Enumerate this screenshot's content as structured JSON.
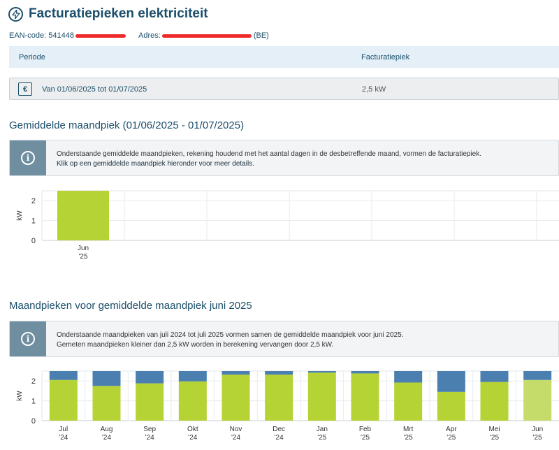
{
  "header": {
    "title": "Facturatiepieken elektriciteit",
    "icon": "bolt-icon"
  },
  "meta": {
    "ean_label": "EAN-code:",
    "ean_value": "541448",
    "address_label": "Adres:",
    "address_suffix": "(BE)"
  },
  "table": {
    "headers": [
      "Periode",
      "Facturatiepiek"
    ],
    "row": {
      "period": "Van 01/06/2025 tot 01/07/2025",
      "peak": "2,5 kW",
      "icon": "invoice-icon"
    }
  },
  "section1": {
    "title": "Gemiddelde maandpiek (01/06/2025 - 01/07/2025)",
    "info_line1": "Onderstaande gemiddelde maandpieken, rekening houdend met het aantal dagen in de desbetreffende maand, vormen de facturatiepiek.",
    "info_line2": "Klik op een gemiddelde maandpiek hieronder voor meer details."
  },
  "section2": {
    "title": "Maandpieken voor gemiddelde maandpiek juni 2025",
    "info_line1": "Onderstaande maandpieken van juli 2024 tot juli 2025 vormen samen de gemiddelde maandpiek voor juni 2025.",
    "info_line2": "Gemeten maandpieken kleiner dan 2,5 kW worden in berekening vervangen door 2,5 kW."
  },
  "chart_data": [
    {
      "type": "bar",
      "ylabel": "kW",
      "ylim": [
        0,
        2.5
      ],
      "yticks": [
        0,
        1,
        2
      ],
      "categories": [
        [
          "Jun",
          "'25"
        ]
      ],
      "values": [
        2.5
      ],
      "colors": {
        "bar": "#b5d334"
      }
    },
    {
      "type": "bar",
      "stacked": true,
      "ylabel": "kW",
      "ylim": [
        0,
        2.5
      ],
      "yticks": [
        0,
        1,
        2
      ],
      "categories": [
        [
          "Jul",
          "'24"
        ],
        [
          "Aug",
          "'24"
        ],
        [
          "Sep",
          "'24"
        ],
        [
          "Okt",
          "'24"
        ],
        [
          "Nov",
          "'24"
        ],
        [
          "Dec",
          "'24"
        ],
        [
          "Jan",
          "'25"
        ],
        [
          "Feb",
          "'25"
        ],
        [
          "Mrt",
          "'25"
        ],
        [
          "Apr",
          "'25"
        ],
        [
          "Mei",
          "'25"
        ],
        [
          "Jun",
          "'25"
        ]
      ],
      "series": [
        {
          "values": [
            2.05,
            1.75,
            1.88,
            1.98,
            2.32,
            2.32,
            2.42,
            2.38,
            1.92,
            1.45,
            1.95,
            2.05
          ]
        },
        {
          "values": [
            0.45,
            0.75,
            0.62,
            0.52,
            0.18,
            0.18,
            0.08,
            0.12,
            0.58,
            1.05,
            0.55,
            0.45
          ]
        }
      ],
      "colors": {
        "measured": "#b5d334",
        "highlight": "#c6dc6a",
        "fill": "#4a7fb0"
      },
      "highlight_index": 11
    }
  ]
}
